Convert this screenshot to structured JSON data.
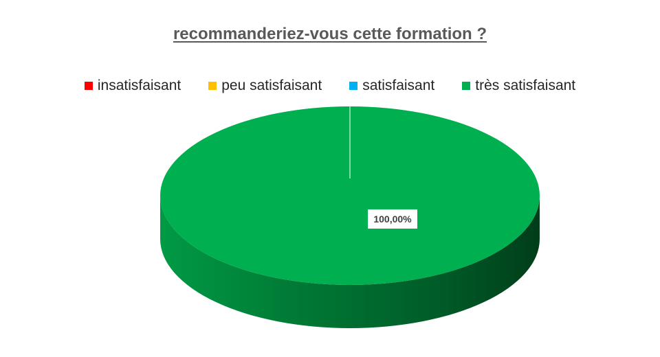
{
  "chart_data": {
    "type": "pie",
    "title": "recommanderiez-vous cette formation ?",
    "legend_position": "top",
    "series": [
      {
        "name": "insatisfaisant",
        "value": 0,
        "color": "#ff0000",
        "label": ""
      },
      {
        "name": "peu satisfaisant",
        "value": 0,
        "color": "#ffc000",
        "label": ""
      },
      {
        "name": "satisfaisant",
        "value": 0,
        "color": "#00b0f0",
        "label": ""
      },
      {
        "name": "très satisfaisant",
        "value": 100,
        "color": "#00b050",
        "label": "100,00%"
      }
    ]
  }
}
